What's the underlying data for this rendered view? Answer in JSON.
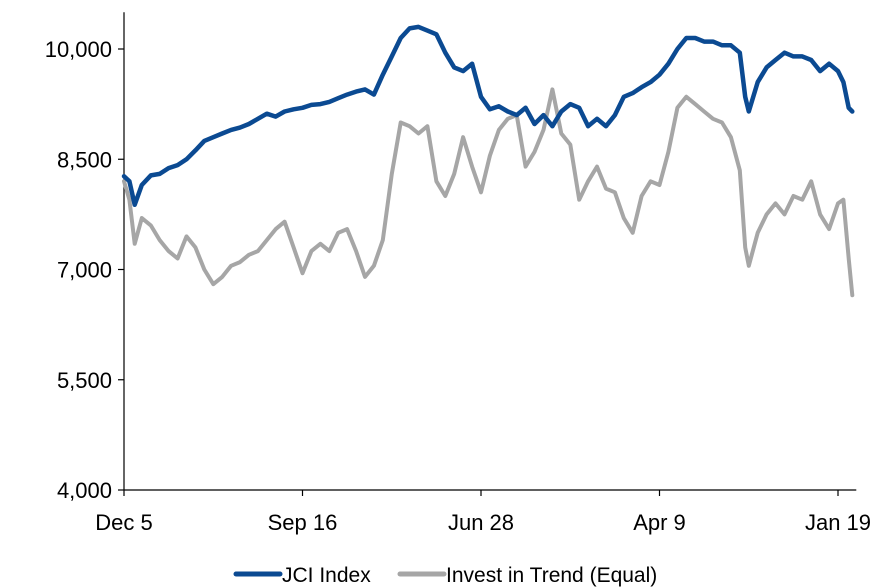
{
  "chart_data": {
    "type": "line",
    "title": "",
    "xlabel": "",
    "ylabel": "",
    "ylim": [
      4000,
      10500
    ],
    "yticks": [
      4000,
      5500,
      7000,
      8500,
      10000
    ],
    "ytick_labels": [
      "4,000",
      "5,500",
      "7,000",
      "8,500",
      "10,000"
    ],
    "xticks": [
      0,
      1,
      2,
      3,
      4
    ],
    "xtick_labels": [
      "Dec 5",
      "Sep 16",
      "Jun 28",
      "Apr 9",
      "Jan 19"
    ],
    "xlim": [
      0,
      4.08
    ],
    "grid": false,
    "legend": "bottom",
    "series": [
      {
        "name": "JCI Index",
        "color": "#0b4a92",
        "points": [
          [
            0.0,
            8270
          ],
          [
            0.03,
            8200
          ],
          [
            0.06,
            7880
          ],
          [
            0.1,
            8150
          ],
          [
            0.15,
            8280
          ],
          [
            0.2,
            8300
          ],
          [
            0.25,
            8380
          ],
          [
            0.3,
            8420
          ],
          [
            0.35,
            8500
          ],
          [
            0.4,
            8620
          ],
          [
            0.45,
            8750
          ],
          [
            0.5,
            8800
          ],
          [
            0.55,
            8850
          ],
          [
            0.6,
            8900
          ],
          [
            0.65,
            8930
          ],
          [
            0.7,
            8980
          ],
          [
            0.75,
            9050
          ],
          [
            0.8,
            9120
          ],
          [
            0.85,
            9080
          ],
          [
            0.9,
            9150
          ],
          [
            0.95,
            9180
          ],
          [
            1.0,
            9200
          ],
          [
            1.05,
            9240
          ],
          [
            1.1,
            9250
          ],
          [
            1.15,
            9280
          ],
          [
            1.2,
            9330
          ],
          [
            1.25,
            9380
          ],
          [
            1.3,
            9420
          ],
          [
            1.35,
            9450
          ],
          [
            1.4,
            9380
          ],
          [
            1.45,
            9650
          ],
          [
            1.5,
            9900
          ],
          [
            1.55,
            10150
          ],
          [
            1.6,
            10280
          ],
          [
            1.65,
            10300
          ],
          [
            1.7,
            10250
          ],
          [
            1.75,
            10200
          ],
          [
            1.8,
            9950
          ],
          [
            1.85,
            9750
          ],
          [
            1.9,
            9700
          ],
          [
            1.95,
            9800
          ],
          [
            2.0,
            9350
          ],
          [
            2.05,
            9180
          ],
          [
            2.1,
            9220
          ],
          [
            2.15,
            9150
          ],
          [
            2.2,
            9100
          ],
          [
            2.25,
            9200
          ],
          [
            2.3,
            8980
          ],
          [
            2.35,
            9100
          ],
          [
            2.4,
            8950
          ],
          [
            2.45,
            9150
          ],
          [
            2.5,
            9250
          ],
          [
            2.55,
            9200
          ],
          [
            2.6,
            8950
          ],
          [
            2.65,
            9050
          ],
          [
            2.7,
            8950
          ],
          [
            2.75,
            9100
          ],
          [
            2.8,
            9350
          ],
          [
            2.85,
            9400
          ],
          [
            2.9,
            9480
          ],
          [
            2.95,
            9550
          ],
          [
            3.0,
            9650
          ],
          [
            3.05,
            9800
          ],
          [
            3.1,
            10000
          ],
          [
            3.15,
            10150
          ],
          [
            3.2,
            10150
          ],
          [
            3.25,
            10100
          ],
          [
            3.3,
            10100
          ],
          [
            3.35,
            10050
          ],
          [
            3.4,
            10050
          ],
          [
            3.45,
            9950
          ],
          [
            3.48,
            9350
          ],
          [
            3.5,
            9150
          ],
          [
            3.55,
            9550
          ],
          [
            3.6,
            9750
          ],
          [
            3.65,
            9850
          ],
          [
            3.7,
            9950
          ],
          [
            3.75,
            9900
          ],
          [
            3.8,
            9900
          ],
          [
            3.85,
            9850
          ],
          [
            3.9,
            9700
          ],
          [
            3.95,
            9800
          ],
          [
            4.0,
            9700
          ],
          [
            4.03,
            9550
          ],
          [
            4.06,
            9200
          ],
          [
            4.08,
            9150
          ]
        ]
      },
      {
        "name": "Invest in Trend (Equal)",
        "color": "#a6a6a6",
        "points": [
          [
            0.0,
            8200
          ],
          [
            0.03,
            7950
          ],
          [
            0.06,
            7350
          ],
          [
            0.1,
            7700
          ],
          [
            0.15,
            7600
          ],
          [
            0.2,
            7400
          ],
          [
            0.25,
            7250
          ],
          [
            0.3,
            7150
          ],
          [
            0.35,
            7450
          ],
          [
            0.4,
            7300
          ],
          [
            0.45,
            7000
          ],
          [
            0.5,
            6800
          ],
          [
            0.55,
            6900
          ],
          [
            0.6,
            7050
          ],
          [
            0.65,
            7100
          ],
          [
            0.7,
            7200
          ],
          [
            0.75,
            7250
          ],
          [
            0.8,
            7400
          ],
          [
            0.85,
            7550
          ],
          [
            0.9,
            7650
          ],
          [
            0.95,
            7300
          ],
          [
            1.0,
            6950
          ],
          [
            1.05,
            7250
          ],
          [
            1.1,
            7350
          ],
          [
            1.15,
            7250
          ],
          [
            1.2,
            7500
          ],
          [
            1.25,
            7550
          ],
          [
            1.3,
            7250
          ],
          [
            1.35,
            6900
          ],
          [
            1.4,
            7050
          ],
          [
            1.45,
            7400
          ],
          [
            1.5,
            8300
          ],
          [
            1.55,
            9000
          ],
          [
            1.6,
            8950
          ],
          [
            1.65,
            8850
          ],
          [
            1.7,
            8950
          ],
          [
            1.75,
            8200
          ],
          [
            1.8,
            8000
          ],
          [
            1.85,
            8300
          ],
          [
            1.9,
            8800
          ],
          [
            1.95,
            8400
          ],
          [
            2.0,
            8050
          ],
          [
            2.05,
            8550
          ],
          [
            2.1,
            8900
          ],
          [
            2.15,
            9050
          ],
          [
            2.2,
            9100
          ],
          [
            2.25,
            8400
          ],
          [
            2.3,
            8600
          ],
          [
            2.35,
            8900
          ],
          [
            2.4,
            9450
          ],
          [
            2.45,
            8850
          ],
          [
            2.5,
            8700
          ],
          [
            2.55,
            7950
          ],
          [
            2.6,
            8200
          ],
          [
            2.65,
            8400
          ],
          [
            2.7,
            8100
          ],
          [
            2.75,
            8050
          ],
          [
            2.8,
            7700
          ],
          [
            2.85,
            7500
          ],
          [
            2.9,
            8000
          ],
          [
            2.95,
            8200
          ],
          [
            3.0,
            8150
          ],
          [
            3.05,
            8600
          ],
          [
            3.1,
            9200
          ],
          [
            3.15,
            9350
          ],
          [
            3.2,
            9250
          ],
          [
            3.25,
            9150
          ],
          [
            3.3,
            9050
          ],
          [
            3.35,
            9000
          ],
          [
            3.4,
            8800
          ],
          [
            3.45,
            8350
          ],
          [
            3.48,
            7300
          ],
          [
            3.5,
            7050
          ],
          [
            3.55,
            7500
          ],
          [
            3.6,
            7750
          ],
          [
            3.65,
            7900
          ],
          [
            3.7,
            7750
          ],
          [
            3.75,
            8000
          ],
          [
            3.8,
            7950
          ],
          [
            3.85,
            8200
          ],
          [
            3.9,
            7750
          ],
          [
            3.95,
            7550
          ],
          [
            4.0,
            7900
          ],
          [
            4.03,
            7950
          ],
          [
            4.06,
            7150
          ],
          [
            4.08,
            6650
          ]
        ]
      }
    ]
  }
}
